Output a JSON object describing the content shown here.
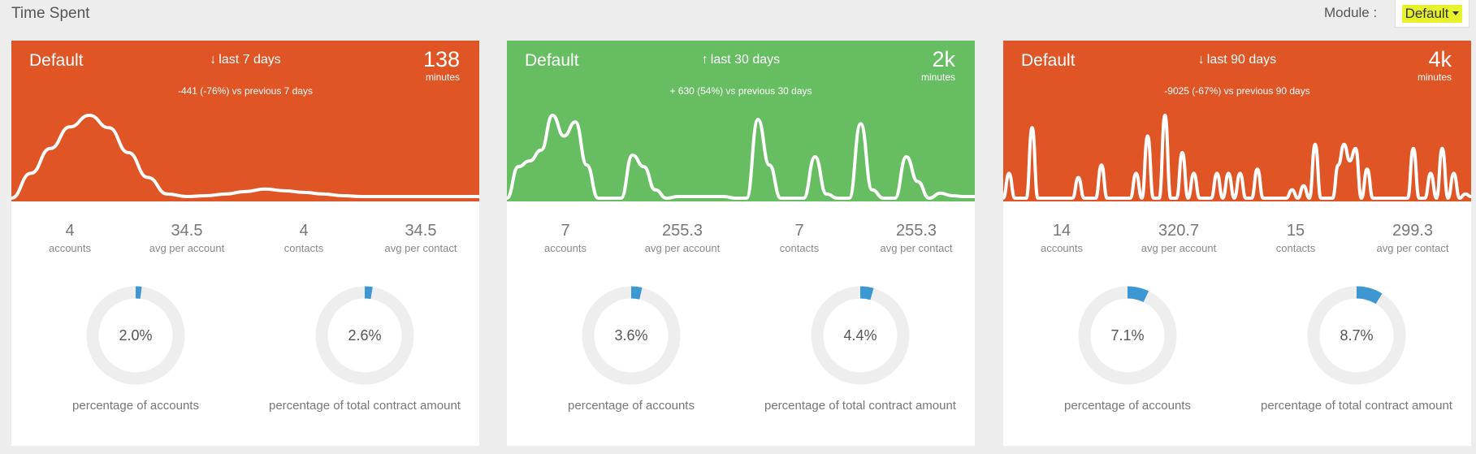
{
  "page": {
    "title": "Time Spent",
    "module_label": "Module :",
    "module_value": "Default"
  },
  "colors": {
    "down": "#e05526",
    "up": "#67be62",
    "ring": "#eeeeee",
    "ring_fill": "#3d97d3"
  },
  "cards": [
    {
      "name": "Default",
      "trend": "down",
      "period": "last 7 days",
      "comparison": "-441 (-76%) vs previous 7 days",
      "total": "138",
      "unit": "minutes",
      "sparkline": [
        0,
        0.3,
        0.6,
        0.86,
        1.0,
        0.85,
        0.55,
        0.25,
        0.05,
        0.02,
        0.03,
        0.05,
        0.08,
        0.11,
        0.09,
        0.07,
        0.05,
        0.03,
        0.02,
        0.02,
        0.02,
        0.02,
        0.02,
        0.02,
        0.02
      ],
      "stats": [
        {
          "value": "4",
          "label": "accounts"
        },
        {
          "value": "34.5",
          "label": "avg per account"
        },
        {
          "value": "4",
          "label": "contacts"
        },
        {
          "value": "34.5",
          "label": "avg per contact"
        }
      ],
      "donuts": [
        {
          "value": 2.0,
          "text": "2.0%",
          "label": "percentage of accounts"
        },
        {
          "value": 2.6,
          "text": "2.6%",
          "label": "percentage of total contract amount"
        }
      ]
    },
    {
      "name": "Default",
      "trend": "up",
      "period": "last 30 days",
      "comparison": "+ 630 (54%) vs previous 30 days",
      "total": "2k",
      "unit": "minutes",
      "sparkline": [
        0,
        0.38,
        0.45,
        0.58,
        1.0,
        0.75,
        0.92,
        0.4,
        0,
        0,
        0,
        0.52,
        0.38,
        0.1,
        0,
        0.02,
        0.02,
        0.02,
        0.02,
        0.02,
        0,
        0,
        0.95,
        0.4,
        0,
        0,
        0,
        0.5,
        0.05,
        0,
        0,
        0.9,
        0.1,
        0,
        0,
        0.5,
        0.2,
        0,
        0.06,
        0.03,
        0.02,
        0.02
      ],
      "stats": [
        {
          "value": "7",
          "label": "accounts"
        },
        {
          "value": "255.3",
          "label": "avg per account"
        },
        {
          "value": "7",
          "label": "contacts"
        },
        {
          "value": "255.3",
          "label": "avg per contact"
        }
      ],
      "donuts": [
        {
          "value": 3.6,
          "text": "3.6%",
          "label": "percentage of accounts"
        },
        {
          "value": 4.4,
          "text": "4.4%",
          "label": "percentage of total contract amount"
        }
      ]
    },
    {
      "name": "Default",
      "trend": "down",
      "period": "last 90 days",
      "comparison": "-9025 (-67%) vs previous 90 days",
      "total": "4k",
      "unit": "minutes",
      "sparkline": [
        0,
        0.3,
        0,
        0,
        0,
        0.85,
        0,
        0,
        0,
        0,
        0,
        0,
        0,
        0.25,
        0,
        0,
        0,
        0.4,
        0,
        0,
        0,
        0,
        0,
        0.3,
        0,
        0.75,
        0,
        0,
        1.0,
        0,
        0,
        0.55,
        0,
        0.3,
        0,
        0,
        0,
        0.3,
        0,
        0.3,
        0,
        0.3,
        0,
        0,
        0.35,
        0,
        0,
        0,
        0,
        0,
        0.1,
        0,
        0.15,
        0,
        0.65,
        0,
        0,
        0,
        0.4,
        0.65,
        0.45,
        0.6,
        0,
        0.35,
        0,
        0,
        0,
        0,
        0,
        0,
        0,
        0.6,
        0,
        0,
        0.3,
        0,
        0.6,
        0,
        0.3,
        0,
        0.05,
        0.02
      ],
      "stats": [
        {
          "value": "14",
          "label": "accounts"
        },
        {
          "value": "320.7",
          "label": "avg per account"
        },
        {
          "value": "15",
          "label": "contacts"
        },
        {
          "value": "299.3",
          "label": "avg per contact"
        }
      ],
      "donuts": [
        {
          "value": 7.1,
          "text": "7.1%",
          "label": "percentage of accounts"
        },
        {
          "value": 8.7,
          "text": "8.7%",
          "label": "percentage of total contract amount"
        }
      ]
    }
  ]
}
